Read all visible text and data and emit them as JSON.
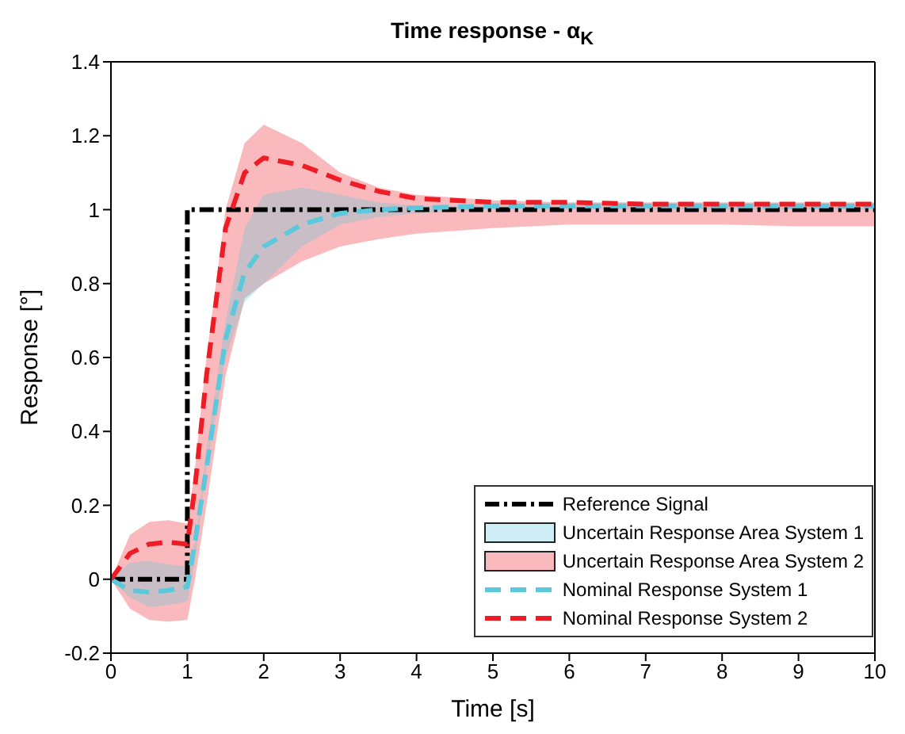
{
  "chart_data": {
    "type": "line",
    "title": "Time response - α$_{K}$",
    "xlabel": "Time [s]",
    "ylabel": "Response [°]",
    "xlim": [
      0,
      10
    ],
    "ylim": [
      -0.2,
      1.4
    ],
    "xticks": [
      0,
      1,
      2,
      3,
      4,
      5,
      6,
      7,
      8,
      9,
      10
    ],
    "yticks": [
      -0.2,
      0,
      0.2,
      0.4,
      0.6,
      0.8,
      1,
      1.2,
      1.4
    ],
    "grid": false,
    "legend": "bottom right",
    "marker": "none",
    "annotations": [
      "Uncertain Response Area System 1",
      "Uncertain Response Area System 2"
    ],
    "x": [
      0,
      0.25,
      0.5,
      0.75,
      1,
      1.1,
      1.25,
      1.5,
      1.75,
      2,
      2.5,
      3,
      3.5,
      4,
      5,
      6,
      7,
      8,
      9,
      10
    ],
    "series": [
      {
        "name": "Reference Signal",
        "color": "#000000",
        "line_style": "dashdot",
        "x": [
          0,
          1,
          1,
          10
        ],
        "values": [
          0,
          0,
          1,
          1
        ]
      },
      {
        "name": "Nominal Response System 1",
        "color": "#5bc8dc",
        "line_style": "dashed",
        "values": [
          0,
          -0.03,
          -0.035,
          -0.03,
          -0.02,
          0.1,
          0.3,
          0.65,
          0.83,
          0.9,
          0.96,
          0.99,
          1,
          1.005,
          1.01,
          1.01,
          1.01,
          1.01,
          1.01,
          1.01
        ],
        "lower": [
          0,
          -0.05,
          -0.075,
          -0.07,
          -0.06,
          0.05,
          0.3,
          0.6,
          0.75,
          0.8,
          0.9,
          0.96,
          0.98,
          0.99,
          1,
          1,
          1,
          1,
          1,
          1
        ],
        "upper": [
          0,
          0.045,
          0.05,
          0.04,
          0.035,
          0.1,
          0.35,
          0.7,
          0.95,
          1.04,
          1.06,
          1.04,
          1.02,
          1.01,
          1.01,
          1.01,
          1.01,
          1.01,
          1.01,
          1.01
        ]
      },
      {
        "name": "Nominal Response System 2",
        "color": "#ee1c25",
        "line_style": "dashed",
        "values": [
          0,
          0.07,
          0.095,
          0.1,
          0.095,
          0.25,
          0.55,
          0.95,
          1.1,
          1.14,
          1.12,
          1.08,
          1.05,
          1.03,
          1.02,
          1.02,
          1.015,
          1.015,
          1.015,
          1.015
        ],
        "lower": [
          0,
          -0.08,
          -0.11,
          -0.115,
          -0.11,
          0,
          0.2,
          0.55,
          0.76,
          0.8,
          0.86,
          0.9,
          0.92,
          0.935,
          0.95,
          0.96,
          0.96,
          0.96,
          0.955,
          0.955
        ],
        "upper": [
          0,
          0.12,
          0.155,
          0.16,
          0.15,
          0.3,
          0.6,
          1,
          1.18,
          1.23,
          1.18,
          1.1,
          1.06,
          1.04,
          1.025,
          1.02,
          1.02,
          1.02,
          1.02,
          1.02
        ]
      }
    ]
  }
}
